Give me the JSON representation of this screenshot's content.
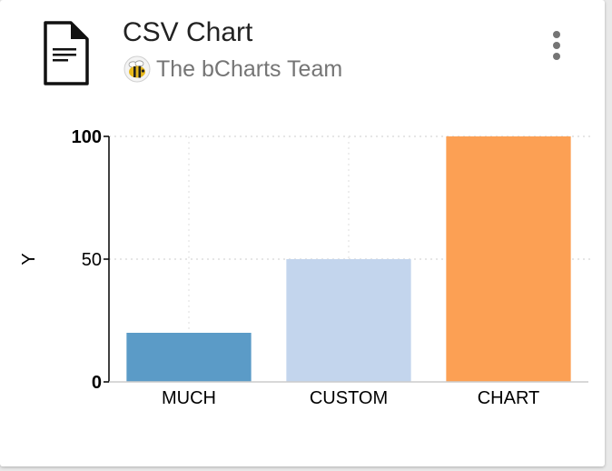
{
  "card": {
    "title": "CSV Chart",
    "author": "The bCharts Team",
    "menu_icon": "more-vert-icon",
    "file_icon": "document-icon",
    "avatar_icon": "bee-icon"
  },
  "chart_data": {
    "type": "bar",
    "categories": [
      "MUCH",
      "CUSTOM",
      "CHART"
    ],
    "values": [
      20,
      50,
      100
    ],
    "colors": [
      "#5b9bc7",
      "#c3d5ed",
      "#fca054"
    ],
    "ylabel": "Y",
    "ylim": [
      0,
      100
    ],
    "yticks": [
      0,
      50,
      100
    ],
    "grid": true
  }
}
